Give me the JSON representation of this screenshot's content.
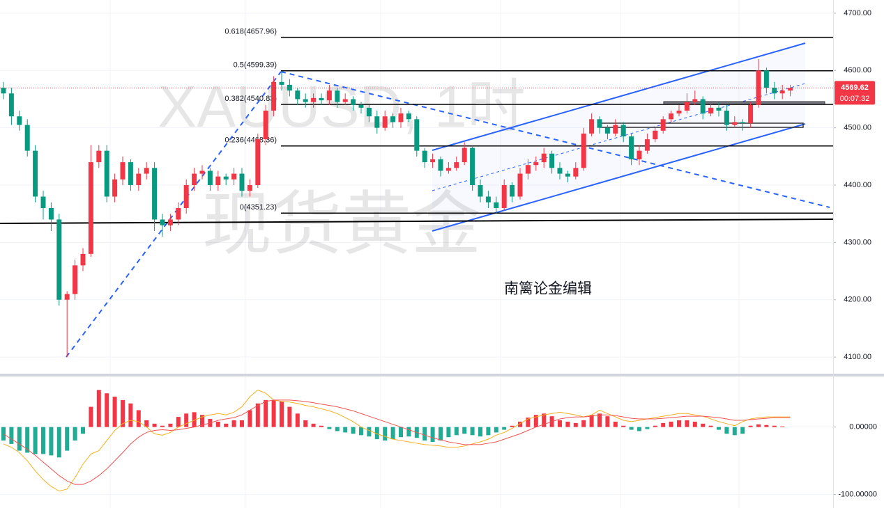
{
  "chart_data": [
    {
      "type": "candlestick",
      "title": "XAUUSD, 1时",
      "subtitle": "现货黄金",
      "annotation": "南篱论金编辑",
      "up_color": "#f23645",
      "down_color": "#089981",
      "open": [
        4570,
        4560,
        4520,
        4505,
        4460,
        4380,
        4360,
        4340,
        4200,
        4210,
        4260,
        4280,
        4440,
        4460,
        4380,
        4410,
        4440,
        4400,
        4420,
        4430,
        4340,
        4330,
        4340,
        4360,
        4400,
        4420,
        4425,
        4400,
        4415,
        4410,
        4420,
        4390,
        4400,
        4480,
        4530,
        4580,
        4575,
        4565,
        4550,
        4545,
        4552,
        4548,
        4565,
        4545,
        4550,
        4540,
        4535,
        4520,
        4500,
        4520,
        4510,
        4525,
        4515,
        4460,
        4440,
        4445,
        4425,
        4430,
        4440,
        4465,
        4400,
        4380,
        4370,
        4360,
        4400,
        4380,
        4420,
        4435,
        4440,
        4455,
        4430,
        4420,
        4415,
        4430,
        4490,
        4515,
        4500,
        4490,
        4505,
        4485,
        4445,
        4460,
        4480,
        4495,
        4515,
        4525,
        4530,
        4545,
        4550,
        4525,
        4535,
        4530,
        4505,
        4510,
        4508,
        4540,
        4600,
        4570,
        4560,
        4565
      ],
      "high": [
        4580,
        4570,
        4530,
        4515,
        4470,
        4390,
        4370,
        4350,
        4215,
        4270,
        4290,
        4470,
        4470,
        4470,
        4420,
        4450,
        4445,
        4430,
        4440,
        4440,
        4350,
        4350,
        4370,
        4410,
        4430,
        4435,
        4430,
        4425,
        4420,
        4430,
        4430,
        4410,
        4490,
        4540,
        4590,
        4599,
        4585,
        4570,
        4560,
        4560,
        4560,
        4575,
        4570,
        4560,
        4555,
        4545,
        4540,
        4530,
        4530,
        4525,
        4535,
        4530,
        4520,
        4465,
        4455,
        4450,
        4440,
        4450,
        4475,
        4470,
        4410,
        4390,
        4380,
        4410,
        4405,
        4430,
        4445,
        4450,
        4465,
        4460,
        4440,
        4425,
        4440,
        4500,
        4525,
        4520,
        4505,
        4515,
        4510,
        4490,
        4470,
        4490,
        4500,
        4520,
        4530,
        4540,
        4560,
        4565,
        4555,
        4545,
        4545,
        4540,
        4520,
        4515,
        4545,
        4620,
        4605,
        4580,
        4575,
        4575
      ],
      "low": [
        4550,
        4505,
        4495,
        4450,
        4370,
        4340,
        4320,
        4190,
        4100,
        4200,
        4250,
        4275,
        4430,
        4370,
        4370,
        4400,
        4390,
        4390,
        4410,
        4320,
        4310,
        4320,
        4330,
        4350,
        4390,
        4410,
        4390,
        4390,
        4400,
        4400,
        4380,
        4380,
        4395,
        4470,
        4520,
        4565,
        4555,
        4540,
        4535,
        4535,
        4540,
        4540,
        4535,
        4540,
        4530,
        4525,
        4510,
        4490,
        4495,
        4500,
        4500,
        4510,
        4450,
        4430,
        4430,
        4415,
        4420,
        4425,
        4435,
        4390,
        4370,
        4360,
        4350,
        4355,
        4370,
        4375,
        4410,
        4425,
        4430,
        4420,
        4410,
        4405,
        4410,
        4425,
        4485,
        4490,
        4480,
        4485,
        4475,
        4435,
        4435,
        4455,
        4475,
        4490,
        4510,
        4520,
        4525,
        4540,
        4515,
        4520,
        4520,
        4495,
        4500,
        4495,
        4500,
        4535,
        4560,
        4550,
        4550,
        4555
      ],
      "close": [
        4560,
        4520,
        4505,
        4460,
        4380,
        4360,
        4340,
        4200,
        4210,
        4260,
        4280,
        4440,
        4460,
        4380,
        4410,
        4440,
        4400,
        4420,
        4430,
        4340,
        4330,
        4340,
        4360,
        4400,
        4420,
        4425,
        4400,
        4415,
        4410,
        4420,
        4390,
        4400,
        4480,
        4530,
        4580,
        4575,
        4565,
        4550,
        4545,
        4552,
        4548,
        4565,
        4545,
        4550,
        4540,
        4535,
        4520,
        4500,
        4520,
        4510,
        4525,
        4515,
        4460,
        4440,
        4445,
        4425,
        4430,
        4440,
        4465,
        4400,
        4380,
        4370,
        4360,
        4400,
        4380,
        4420,
        4435,
        4440,
        4455,
        4430,
        4420,
        4415,
        4430,
        4490,
        4515,
        4500,
        4490,
        4505,
        4485,
        4445,
        4460,
        4480,
        4495,
        4515,
        4525,
        4530,
        4545,
        4550,
        4525,
        4535,
        4530,
        4505,
        4510,
        4508,
        4540,
        4600,
        4570,
        4560,
        4565,
        4569.62
      ],
      "ylim": [
        4071,
        4723
      ],
      "yticks": [
        {
          "value": 4100,
          "label": "4100.00"
        },
        {
          "value": 4200,
          "label": "4200.00"
        },
        {
          "value": 4300,
          "label": "4300.00"
        },
        {
          "value": 4400,
          "label": "4400.00"
        },
        {
          "value": 4500,
          "label": "4500.00"
        },
        {
          "value": 4600,
          "label": "4600.00"
        },
        {
          "value": 4700,
          "label": "4700.00"
        }
      ],
      "grid": true,
      "last_price": {
        "value": 4569.62,
        "label": "4569.62"
      },
      "countdown": "00:07:32",
      "fib_levels": [
        {
          "value": 4657.96,
          "label": "0.618(4657.96)"
        },
        {
          "value": 4599.39,
          "label": "0.5(4599.39)"
        },
        {
          "value": 4540.83,
          "label": "0.382(4540.83)"
        },
        {
          "value": 4468.36,
          "label": "0.236(4468.36)"
        },
        {
          "value": 4351.23,
          "label": "0(4351.23)"
        }
      ]
    },
    {
      "type": "macd",
      "histogram": {
        "up_color": "#f23645",
        "down_color": "#22ab94",
        "values": [
          -20,
          -25,
          -35,
          -38,
          -40,
          -40,
          -42,
          -45,
          -35,
          -20,
          -10,
          30,
          55,
          50,
          45,
          40,
          35,
          25,
          10,
          5,
          2,
          5,
          15,
          20,
          22,
          18,
          12,
          8,
          5,
          10,
          10,
          25,
          35,
          40,
          40,
          38,
          30,
          20,
          10,
          5,
          2,
          -3,
          -6,
          -8,
          -10,
          -12,
          -14,
          -18,
          -20,
          -18,
          -15,
          -14,
          -16,
          -20,
          -22,
          -20,
          -15,
          -12,
          -10,
          -12,
          -14,
          -12,
          -8,
          -4,
          2,
          8,
          14,
          18,
          20,
          16,
          10,
          8,
          6,
          10,
          18,
          20,
          16,
          8,
          2,
          -4,
          -6,
          -3,
          2,
          6,
          8,
          10,
          10,
          8,
          5,
          2,
          -4,
          -10,
          -12,
          -10,
          2,
          4,
          3,
          2,
          1,
          0
        ]
      },
      "series": [
        {
          "color": "#f5b01e",
          "values": [
            -25,
            -30,
            -38,
            -50,
            -65,
            -78,
            -88,
            -95,
            -92,
            -75,
            -55,
            -40,
            -35,
            -20,
            -5,
            5,
            10,
            8,
            0,
            -10,
            -12,
            -8,
            0,
            5,
            10,
            15,
            18,
            20,
            18,
            22,
            30,
            45,
            55,
            50,
            40,
            38,
            37,
            35,
            32,
            30,
            27,
            24,
            20,
            14,
            8,
            0,
            -5,
            -10,
            -14,
            -18,
            -20,
            -22,
            -24,
            -26,
            -27,
            -28,
            -30,
            -30,
            -28,
            -25,
            -22,
            -18,
            -12,
            -8,
            -2,
            5,
            12,
            15,
            18,
            20,
            22,
            20,
            18,
            15,
            18,
            25,
            20,
            15,
            10,
            8,
            10,
            12,
            14,
            16,
            18,
            20,
            20,
            18,
            16,
            12,
            8,
            5,
            2,
            8,
            12,
            14,
            15,
            15,
            15,
            15
          ]
        },
        {
          "color": "#ef5350",
          "values": [
            -10,
            -18,
            -25,
            -33,
            -42,
            -52,
            -62,
            -72,
            -80,
            -85,
            -85,
            -80,
            -72,
            -62,
            -50,
            -38,
            -25,
            -15,
            -8,
            -5,
            -4,
            -5,
            -4,
            -2,
            0,
            3,
            6,
            10,
            12,
            14,
            18,
            25,
            32,
            38,
            40,
            40,
            40,
            39,
            38,
            36,
            34,
            32,
            30,
            27,
            24,
            20,
            16,
            12,
            8,
            4,
            0,
            -4,
            -8,
            -12,
            -16,
            -19,
            -22,
            -24,
            -26,
            -26,
            -26,
            -24,
            -22,
            -18,
            -14,
            -10,
            -5,
            0,
            4,
            8,
            12,
            14,
            15,
            15,
            16,
            18,
            18,
            17,
            15,
            13,
            12,
            12,
            12,
            13,
            14,
            15,
            16,
            16,
            16,
            15,
            14,
            12,
            10,
            10,
            11,
            12,
            13,
            14,
            14,
            14
          ]
        }
      ],
      "y2lim": [
        -120,
        76
      ],
      "y2ticks": [
        {
          "value": -100,
          "label": "-100.00000"
        },
        {
          "value": 0,
          "label": "0.00000"
        }
      ]
    }
  ]
}
